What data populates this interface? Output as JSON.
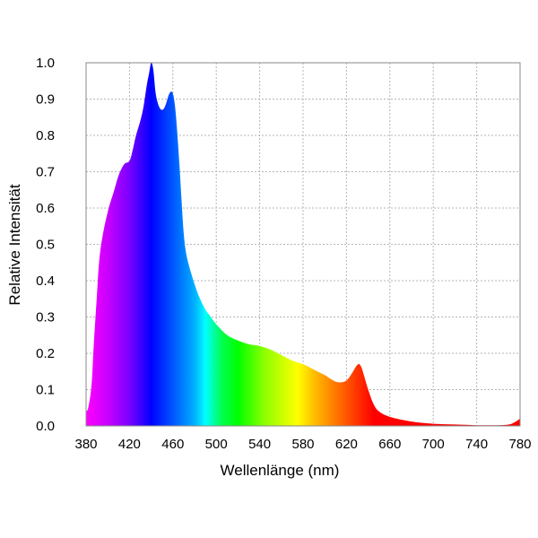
{
  "chart_data": {
    "type": "area",
    "title": "",
    "xlabel": "Wellenlänge (nm)",
    "ylabel": "Relative Intensität",
    "xlim": [
      380,
      780
    ],
    "ylim": [
      0,
      1.0
    ],
    "x_ticks": [
      380,
      420,
      460,
      500,
      540,
      580,
      620,
      660,
      700,
      740,
      780
    ],
    "x_tick_labels": [
      "380",
      "420",
      "460",
      "500",
      "540",
      "580",
      "620",
      "660",
      "700",
      "740",
      "780"
    ],
    "y_ticks": [
      0,
      0.1,
      0.2,
      0.3,
      0.4,
      0.5,
      0.6,
      0.7,
      0.8,
      0.9,
      1.0
    ],
    "y_tick_labels": [
      "0.0",
      "0.1",
      "0.2",
      "0.3",
      "0.4",
      "0.5",
      "0.6",
      "0.7",
      "0.8",
      "0.9",
      "1.0"
    ],
    "grid": true,
    "fill": "visible-spectrum gradient",
    "x": [
      380,
      382,
      385,
      387,
      390,
      392,
      395,
      400,
      405,
      410,
      415,
      420,
      423,
      426,
      430,
      433,
      436,
      438,
      440,
      442,
      444,
      446,
      448,
      450,
      452,
      454,
      456,
      458,
      460,
      462,
      464,
      466,
      468,
      470,
      472,
      475,
      480,
      485,
      490,
      495,
      500,
      510,
      520,
      530,
      540,
      550,
      560,
      570,
      580,
      590,
      600,
      605,
      610,
      615,
      620,
      624,
      628,
      630,
      632,
      634,
      636,
      640,
      645,
      650,
      660,
      680,
      700,
      720,
      740,
      760,
      770,
      775,
      780
    ],
    "y": [
      0.04,
      0.05,
      0.11,
      0.22,
      0.36,
      0.45,
      0.52,
      0.59,
      0.64,
      0.69,
      0.72,
      0.73,
      0.76,
      0.8,
      0.84,
      0.88,
      0.94,
      0.97,
      1.0,
      0.98,
      0.92,
      0.89,
      0.875,
      0.87,
      0.875,
      0.89,
      0.91,
      0.92,
      0.915,
      0.88,
      0.81,
      0.72,
      0.62,
      0.53,
      0.48,
      0.44,
      0.39,
      0.35,
      0.32,
      0.3,
      0.28,
      0.25,
      0.235,
      0.225,
      0.22,
      0.21,
      0.195,
      0.18,
      0.17,
      0.155,
      0.14,
      0.13,
      0.122,
      0.12,
      0.125,
      0.14,
      0.16,
      0.168,
      0.17,
      0.16,
      0.14,
      0.1,
      0.06,
      0.04,
      0.025,
      0.012,
      0.006,
      0.004,
      0.002,
      0.002,
      0.004,
      0.01,
      0.02
    ]
  },
  "colors": {
    "frame": "#8a8a8a",
    "grid": "#b5b5b5",
    "text": "#000000",
    "spectrum_stops": [
      {
        "nm": 380,
        "color": "#ff00ff"
      },
      {
        "nm": 400,
        "color": "#c800ff"
      },
      {
        "nm": 420,
        "color": "#7a00ff"
      },
      {
        "nm": 440,
        "color": "#0000ff"
      },
      {
        "nm": 460,
        "color": "#0055ff"
      },
      {
        "nm": 480,
        "color": "#00b0ff"
      },
      {
        "nm": 490,
        "color": "#00ffff"
      },
      {
        "nm": 505,
        "color": "#00ff50"
      },
      {
        "nm": 520,
        "color": "#00ff00"
      },
      {
        "nm": 545,
        "color": "#90ff00"
      },
      {
        "nm": 575,
        "color": "#ffff00"
      },
      {
        "nm": 590,
        "color": "#ffbe00"
      },
      {
        "nm": 620,
        "color": "#ff5500"
      },
      {
        "nm": 645,
        "color": "#ff0000"
      },
      {
        "nm": 780,
        "color": "#ff0000"
      }
    ]
  }
}
